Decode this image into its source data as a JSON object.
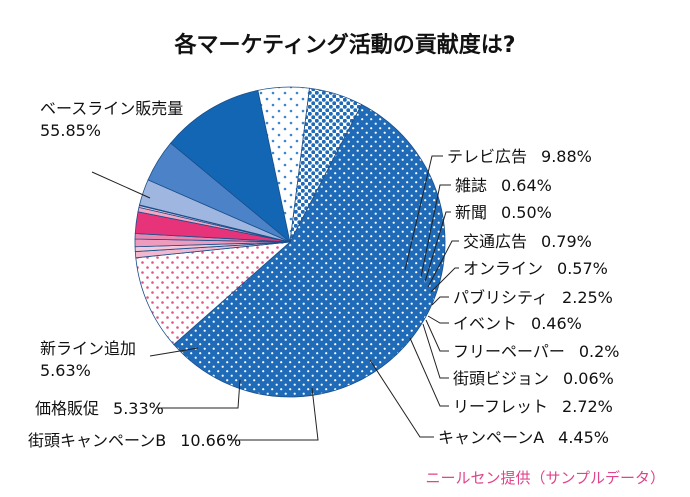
{
  "chart_data": {
    "type": "pie",
    "title": "各マーケティング活動の貢献度は?",
    "source_note": "ニールセン提供（サンプルデータ）",
    "slices": [
      {
        "label": "ベースライン販売量",
        "value": 55.85,
        "text": "55.85%"
      },
      {
        "label": "テレビ広告",
        "value": 9.88,
        "text": "9.88%"
      },
      {
        "label": "雑誌",
        "value": 0.64,
        "text": "0.64%"
      },
      {
        "label": "新聞",
        "value": 0.5,
        "text": "0.50%"
      },
      {
        "label": "交通広告",
        "value": 0.79,
        "text": "0.79%"
      },
      {
        "label": "オンライン",
        "value": 0.57,
        "text": "0.57%"
      },
      {
        "label": "パブリシティ",
        "value": 2.25,
        "text": "2.25%"
      },
      {
        "label": "イベント",
        "value": 0.46,
        "text": "0.46%"
      },
      {
        "label": "フリーペーパー",
        "value": 0.2,
        "text": "0.2%"
      },
      {
        "label": "街頭ビジョン",
        "value": 0.06,
        "text": "0.06%"
      },
      {
        "label": "リーフレット",
        "value": 2.72,
        "text": "2.72%"
      },
      {
        "label": "キャンペーンA",
        "value": 4.45,
        "text": "4.45%"
      },
      {
        "label": "街頭キャンペーンB",
        "value": 10.66,
        "text": "10.66%"
      },
      {
        "label": "価格販促",
        "value": 5.33,
        "text": "5.33%"
      },
      {
        "label": "新ライン追加",
        "value": 5.63,
        "text": "5.63%"
      }
    ]
  }
}
